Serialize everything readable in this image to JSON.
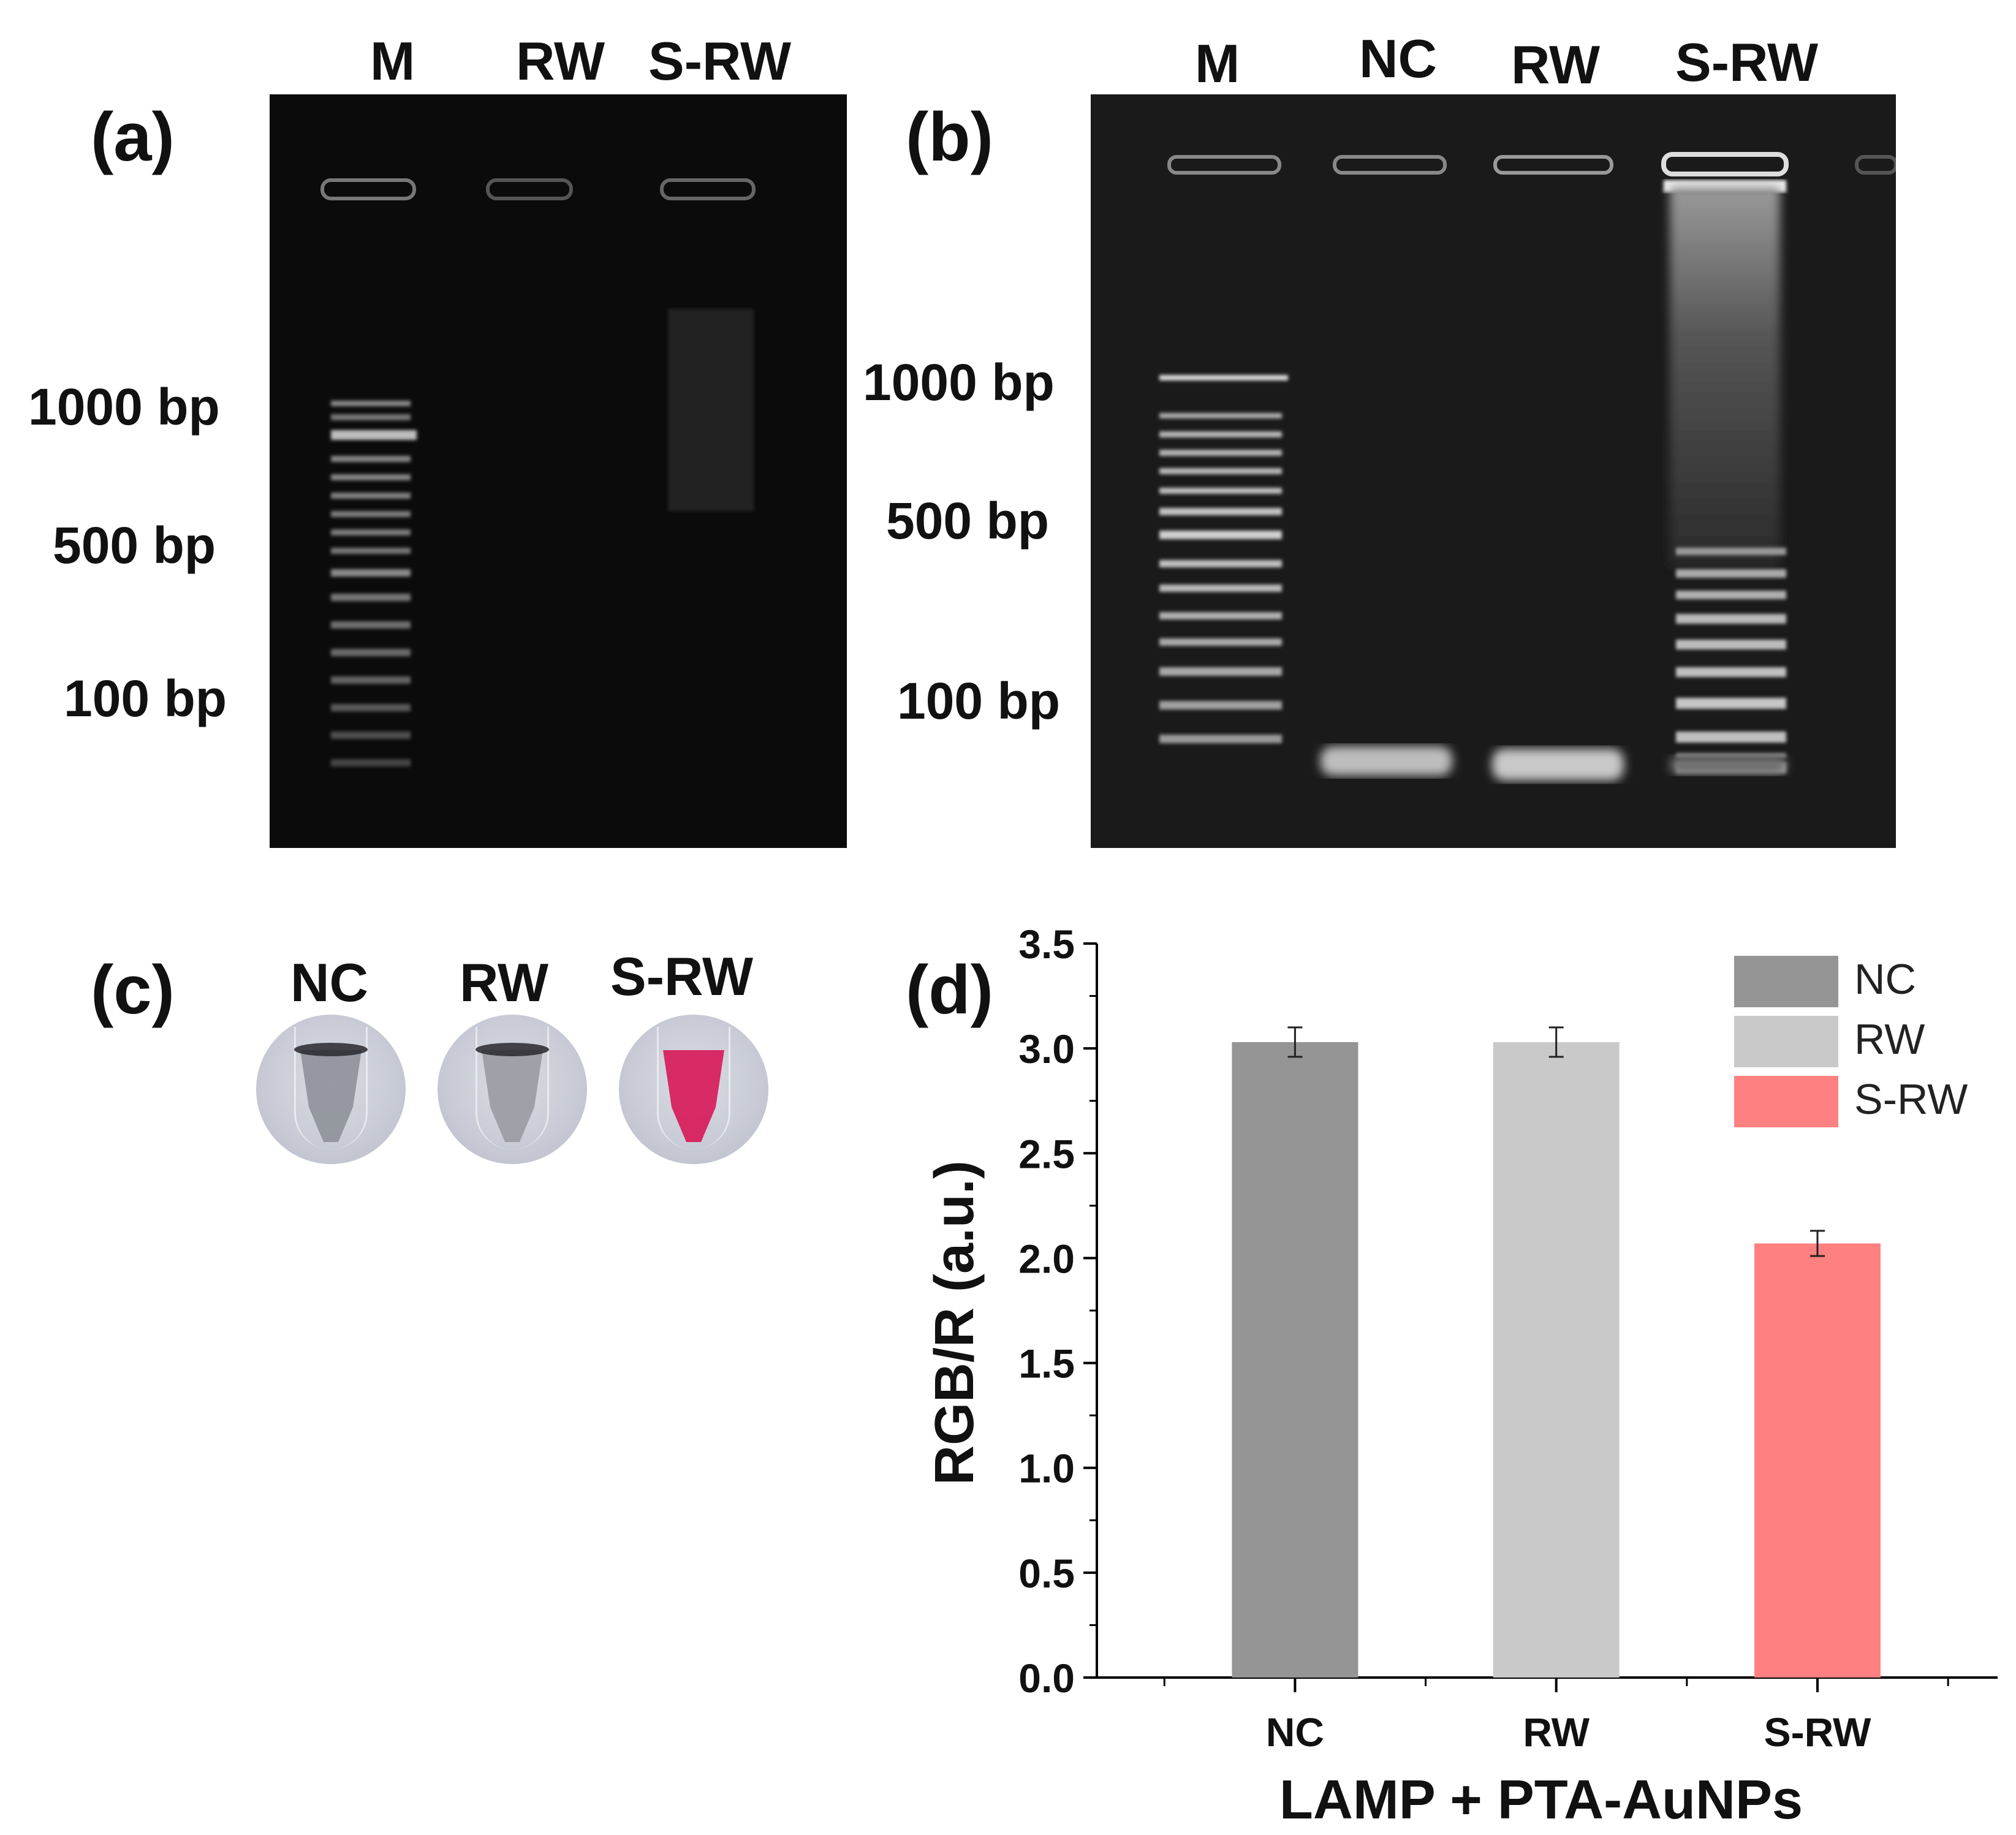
{
  "panel_a": {
    "label": "(a)",
    "lanes": [
      "M",
      "RW",
      "S-RW"
    ],
    "markers": [
      "1000 bp",
      "500 bp",
      "100 bp"
    ]
  },
  "panel_b": {
    "label": "(b)",
    "lanes": [
      "M",
      "NC",
      "RW",
      "S-RW"
    ],
    "markers": [
      "1000 bp",
      "500 bp",
      "100 bp"
    ]
  },
  "panel_c": {
    "label": "(c)",
    "tubes": [
      {
        "label": "NC",
        "color": "#8f929a"
      },
      {
        "label": "RW",
        "color": "#9a9ca4"
      },
      {
        "label": "S-RW",
        "color": "#d81b5a"
      }
    ]
  },
  "panel_d": {
    "label": "(d)"
  },
  "chart_data": {
    "type": "bar",
    "categories": [
      "NC",
      "RW",
      "S-RW"
    ],
    "values": [
      3.03,
      3.03,
      2.07
    ],
    "errors": [
      0.07,
      0.07,
      0.06
    ],
    "colors": [
      "#959595",
      "#c9c9c9",
      "#ff8080"
    ],
    "legend": [
      "NC",
      "RW",
      "S-RW"
    ],
    "legend_position": "top-right",
    "xlabel": "LAMP + PTA-AuNPs",
    "ylabel": "RGB/R (a.u.)",
    "ylim": [
      0,
      3.5
    ],
    "yticks": [
      "0.0",
      "0.5",
      "1.0",
      "1.5",
      "2.0",
      "2.5",
      "3.0",
      "3.5"
    ],
    "grid": false
  }
}
